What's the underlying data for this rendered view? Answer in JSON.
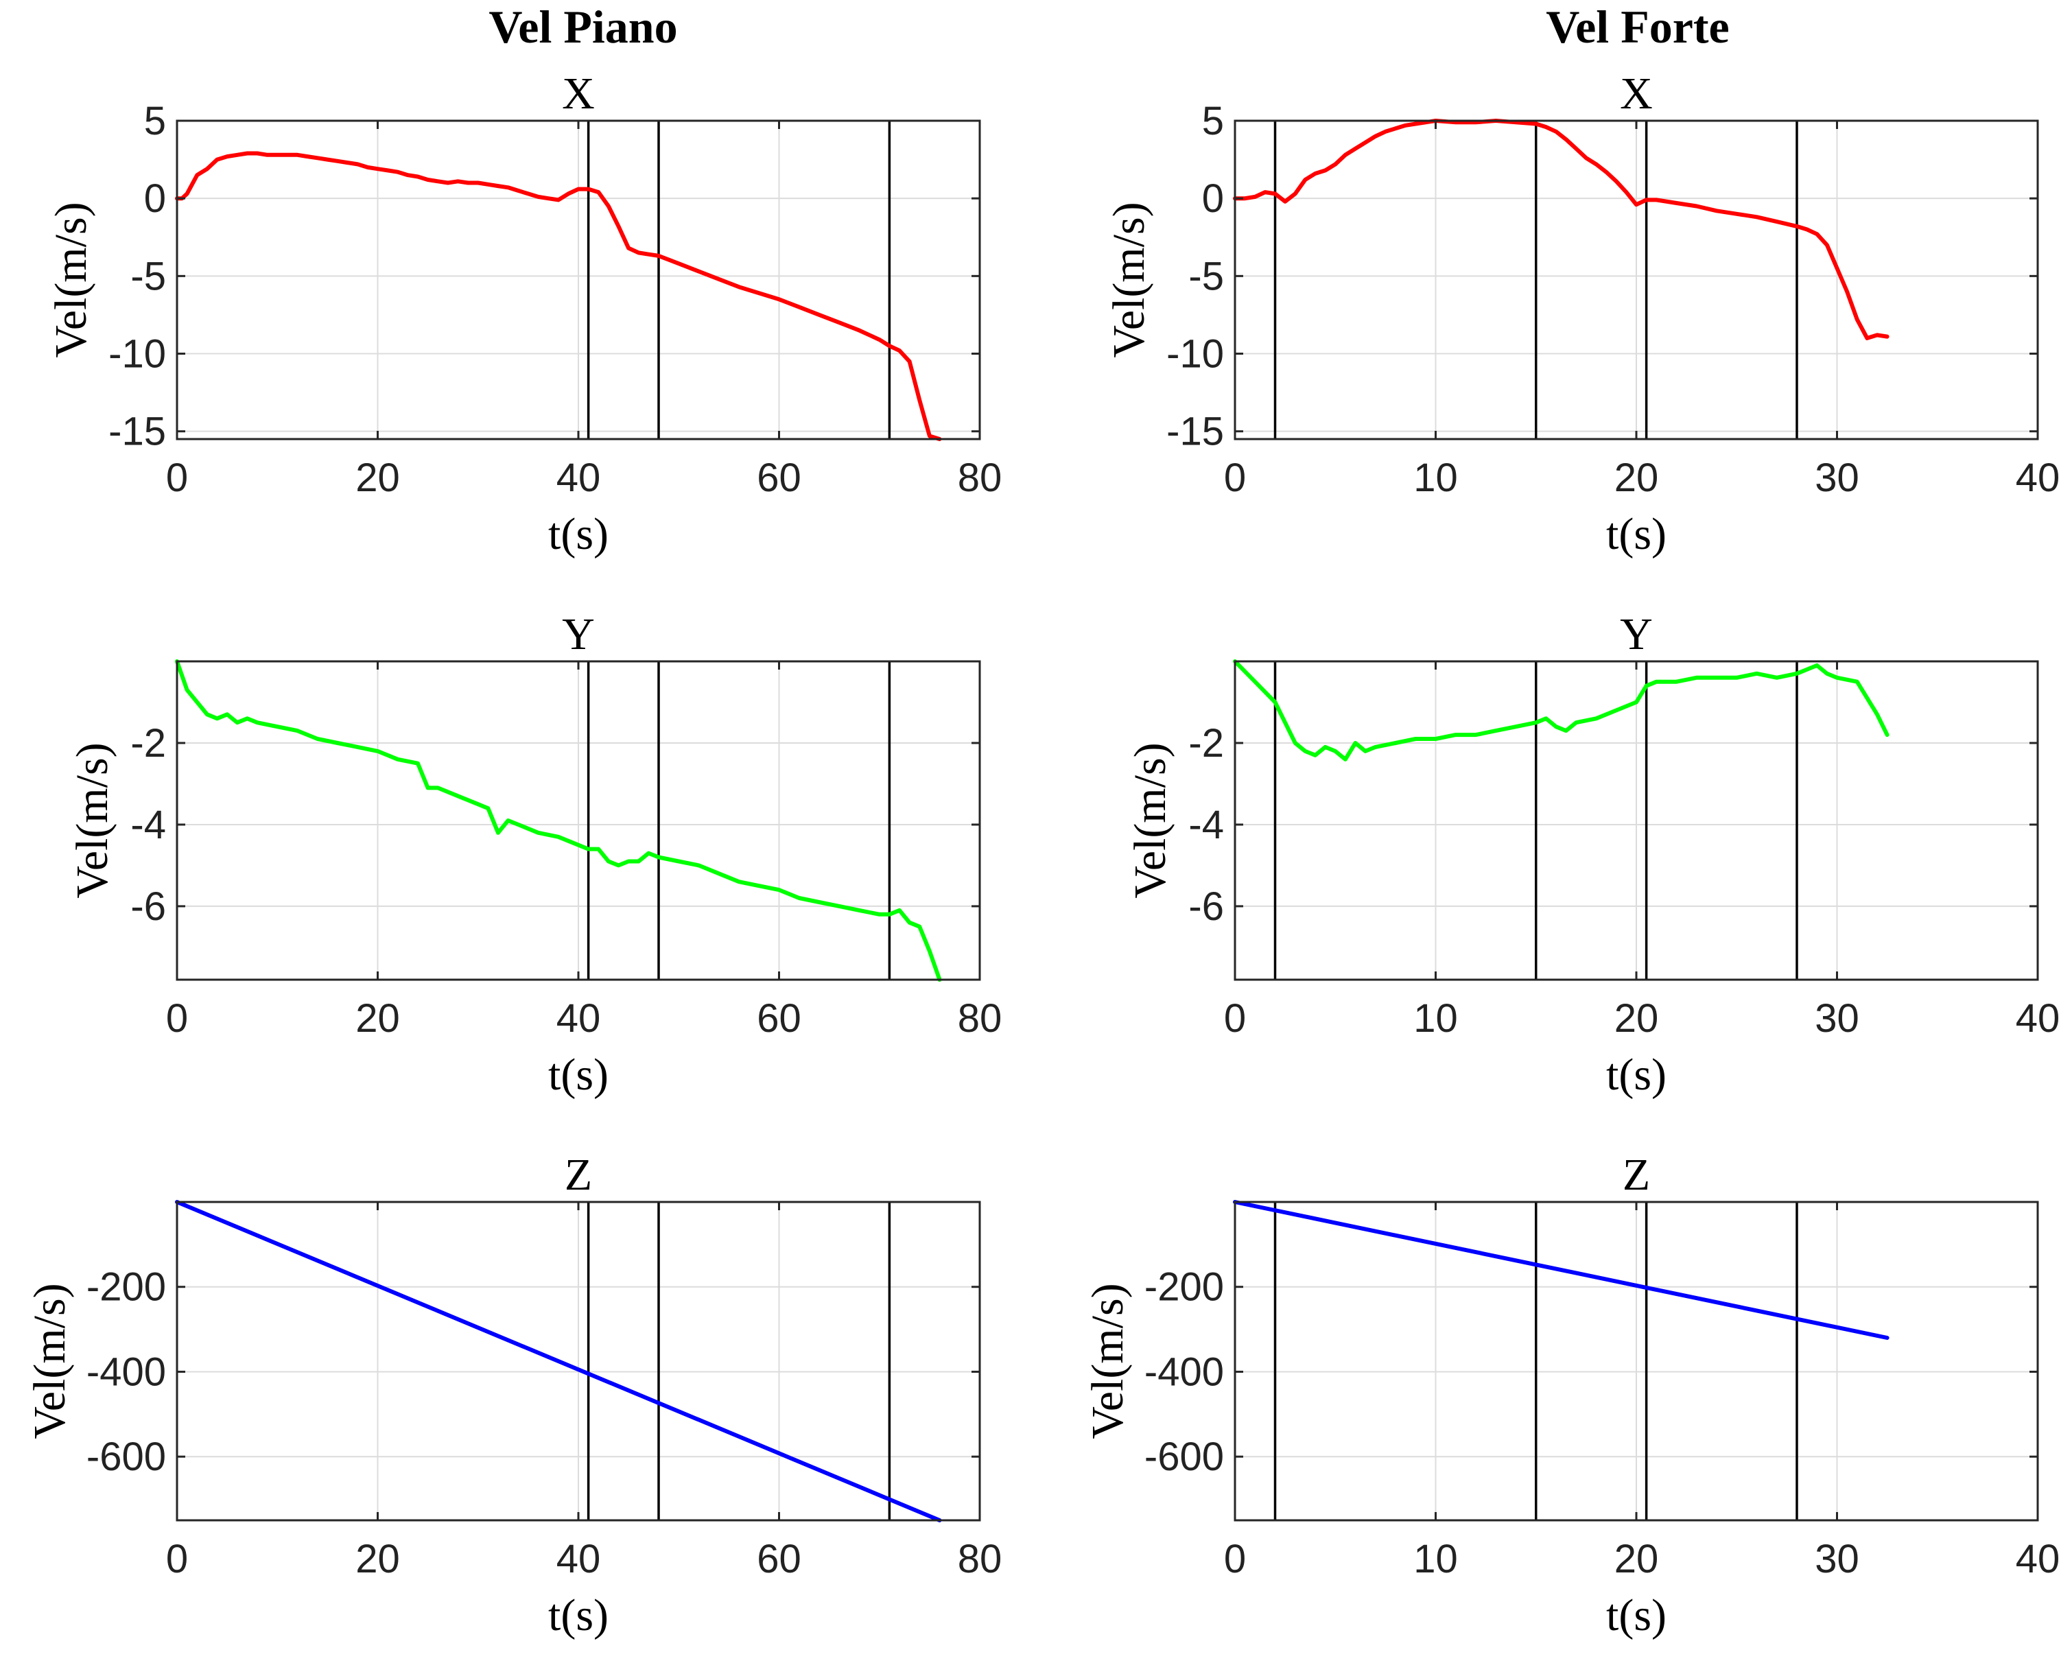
{
  "figure": {
    "column_titles": [
      "Vel Piano",
      "Vel Forte"
    ]
  },
  "chart_data": [
    {
      "type": "line",
      "title": "X",
      "column": "Vel Piano",
      "xlabel": "t(s)",
      "ylabel": "Vel(m/s)",
      "xlim": [
        0,
        80
      ],
      "ylim": [
        -15.5,
        5
      ],
      "xticks": [
        0,
        20,
        40,
        60,
        80
      ],
      "yticks": [
        5,
        0,
        -5,
        -10,
        -15
      ],
      "vlines": [
        41,
        48,
        71
      ],
      "color": "#ff0000",
      "series": [
        {
          "x": [
            0,
            0.5,
            1,
            2,
            3,
            4,
            5,
            6,
            7,
            8,
            9,
            10,
            11,
            12,
            13,
            14,
            15,
            16,
            17,
            18,
            19,
            20,
            21,
            22,
            23,
            24,
            25,
            26,
            27,
            28,
            29,
            30,
            31,
            32,
            33,
            34,
            35,
            36,
            37,
            38,
            39,
            40,
            41,
            42,
            43,
            44,
            45,
            46,
            47,
            48,
            50,
            52,
            54,
            56,
            58,
            60,
            62,
            64,
            66,
            68,
            70,
            71,
            72,
            73,
            74,
            75,
            76
          ],
          "y": [
            0,
            0,
            0.3,
            1.5,
            1.9,
            2.5,
            2.7,
            2.8,
            2.9,
            2.9,
            2.8,
            2.8,
            2.8,
            2.8,
            2.7,
            2.6,
            2.5,
            2.4,
            2.3,
            2.2,
            2.0,
            1.9,
            1.8,
            1.7,
            1.5,
            1.4,
            1.2,
            1.1,
            1.0,
            1.1,
            1.0,
            1.0,
            0.9,
            0.8,
            0.7,
            0.5,
            0.3,
            0.1,
            0,
            -0.1,
            0.3,
            0.6,
            0.6,
            0.4,
            -0.5,
            -1.8,
            -3.2,
            -3.5,
            -3.6,
            -3.7,
            -4.2,
            -4.7,
            -5.2,
            -5.7,
            -6.1,
            -6.5,
            -7.0,
            -7.5,
            -8.0,
            -8.5,
            -9.1,
            -9.5,
            -9.8,
            -10.5,
            -13.0,
            -15.3,
            -15.5
          ]
        }
      ]
    },
    {
      "type": "line",
      "title": "Y",
      "column": "Vel Piano",
      "xlabel": "t(s)",
      "ylabel": "Vel(m/s)",
      "xlim": [
        0,
        80
      ],
      "ylim": [
        -7.8,
        0
      ],
      "xticks": [
        0,
        20,
        40,
        60,
        80
      ],
      "yticks": [
        -2,
        -4,
        -6
      ],
      "vlines": [
        41,
        48,
        71
      ],
      "color": "#00ff00",
      "series": [
        {
          "x": [
            0,
            1,
            2,
            3,
            4,
            5,
            6,
            7,
            8,
            10,
            12,
            14,
            16,
            18,
            20,
            22,
            24,
            25,
            26,
            28,
            30,
            31,
            32,
            33,
            34,
            36,
            38,
            40,
            41,
            42,
            43,
            44,
            45,
            46,
            47,
            48,
            50,
            52,
            54,
            56,
            58,
            60,
            62,
            64,
            66,
            68,
            70,
            71,
            72,
            73,
            74,
            75,
            76
          ],
          "y": [
            0,
            -0.7,
            -1.0,
            -1.3,
            -1.4,
            -1.3,
            -1.5,
            -1.4,
            -1.5,
            -1.6,
            -1.7,
            -1.9,
            -2.0,
            -2.1,
            -2.2,
            -2.4,
            -2.5,
            -3.1,
            -3.1,
            -3.3,
            -3.5,
            -3.6,
            -4.2,
            -3.9,
            -4.0,
            -4.2,
            -4.3,
            -4.5,
            -4.6,
            -4.6,
            -4.9,
            -5.0,
            -4.9,
            -4.9,
            -4.7,
            -4.8,
            -4.9,
            -5.0,
            -5.2,
            -5.4,
            -5.5,
            -5.6,
            -5.8,
            -5.9,
            -6.0,
            -6.1,
            -6.2,
            -6.2,
            -6.1,
            -6.4,
            -6.5,
            -7.1,
            -7.8
          ]
        }
      ]
    },
    {
      "type": "line",
      "title": "Z",
      "column": "Vel Piano",
      "xlabel": "t(s)",
      "ylabel": "Vel(m/s)",
      "xlim": [
        0,
        80
      ],
      "ylim": [
        -750,
        0
      ],
      "xticks": [
        0,
        20,
        40,
        60,
        80
      ],
      "yticks": [
        -200,
        -400,
        -600
      ],
      "vlines": [
        41,
        48,
        71
      ],
      "color": "#0000ff",
      "series": [
        {
          "x": [
            0,
            76
          ],
          "y": [
            0,
            -750
          ]
        }
      ]
    },
    {
      "type": "line",
      "title": "X",
      "column": "Vel Forte",
      "xlabel": "t(s)",
      "ylabel": "Vel(m/s)",
      "xlim": [
        0,
        40
      ],
      "ylim": [
        -15.5,
        5
      ],
      "xticks": [
        0,
        10,
        20,
        30,
        40
      ],
      "yticks": [
        5,
        0,
        -5,
        -10,
        -15
      ],
      "vlines": [
        2,
        15,
        20.5,
        28
      ],
      "color": "#ff0000",
      "series": [
        {
          "x": [
            0,
            0.5,
            1,
            1.5,
            2,
            2.5,
            3,
            3.5,
            4,
            4.5,
            5,
            5.5,
            6,
            6.5,
            7,
            7.5,
            8,
            8.5,
            9,
            9.5,
            10,
            11,
            12,
            13,
            14,
            15,
            15.5,
            16,
            16.5,
            17,
            17.5,
            18,
            18.5,
            19,
            19.5,
            20,
            20.5,
            21,
            22,
            23,
            24,
            25,
            26,
            27,
            28,
            28.5,
            29,
            29.5,
            30,
            30.5,
            31,
            31.5,
            32,
            32.5
          ],
          "y": [
            0,
            0,
            0.1,
            0.4,
            0.3,
            -0.2,
            0.3,
            1.2,
            1.6,
            1.8,
            2.2,
            2.8,
            3.2,
            3.6,
            4.0,
            4.3,
            4.5,
            4.7,
            4.8,
            4.9,
            5.0,
            4.9,
            4.9,
            5.0,
            4.9,
            4.8,
            4.6,
            4.3,
            3.8,
            3.2,
            2.6,
            2.2,
            1.7,
            1.1,
            0.4,
            -0.4,
            -0.1,
            -0.1,
            -0.3,
            -0.5,
            -0.8,
            -1.0,
            -1.2,
            -1.5,
            -1.8,
            -2.0,
            -2.3,
            -3.0,
            -4.5,
            -6.0,
            -7.8,
            -9.0,
            -8.8,
            -8.9
          ]
        }
      ]
    },
    {
      "type": "line",
      "title": "Y",
      "column": "Vel Forte",
      "xlabel": "t(s)",
      "ylabel": "Vel(m/s)",
      "xlim": [
        0,
        40
      ],
      "ylim": [
        -7.8,
        0
      ],
      "xticks": [
        0,
        10,
        20,
        30,
        40
      ],
      "yticks": [
        -2,
        -4,
        -6
      ],
      "vlines": [
        2,
        15,
        20.5,
        28
      ],
      "color": "#00ff00",
      "series": [
        {
          "x": [
            0,
            1,
            2,
            2.5,
            3,
            3.5,
            4,
            4.5,
            5,
            5.5,
            6,
            6.5,
            7,
            8,
            9,
            10,
            11,
            12,
            13,
            14,
            15,
            15.5,
            16,
            16.5,
            17,
            18,
            19,
            20,
            20.5,
            21,
            22,
            23,
            24,
            25,
            26,
            27,
            28,
            28.5,
            29,
            29.5,
            30,
            31,
            32,
            32.5
          ],
          "y": [
            0,
            -0.5,
            -1.0,
            -1.5,
            -2.0,
            -2.2,
            -2.3,
            -2.1,
            -2.2,
            -2.4,
            -2.0,
            -2.2,
            -2.1,
            -2.0,
            -1.9,
            -1.9,
            -1.8,
            -1.8,
            -1.7,
            -1.6,
            -1.5,
            -1.4,
            -1.6,
            -1.7,
            -1.5,
            -1.4,
            -1.2,
            -1.0,
            -0.6,
            -0.5,
            -0.5,
            -0.4,
            -0.4,
            -0.4,
            -0.3,
            -0.4,
            -0.3,
            -0.2,
            -0.1,
            -0.3,
            -0.4,
            -0.5,
            -1.3,
            -1.8
          ]
        }
      ]
    },
    {
      "type": "line",
      "title": "Z",
      "column": "Vel Forte",
      "xlabel": "t(s)",
      "ylabel": "Vel(m/s)",
      "xlim": [
        0,
        40
      ],
      "ylim": [
        -750,
        0
      ],
      "xticks": [
        0,
        10,
        20,
        30,
        40
      ],
      "yticks": [
        -200,
        -400,
        -600
      ],
      "vlines": [
        2,
        15,
        20.5,
        28
      ],
      "color": "#0000ff",
      "series": [
        {
          "x": [
            0,
            32.5
          ],
          "y": [
            0,
            -320
          ]
        }
      ]
    }
  ]
}
